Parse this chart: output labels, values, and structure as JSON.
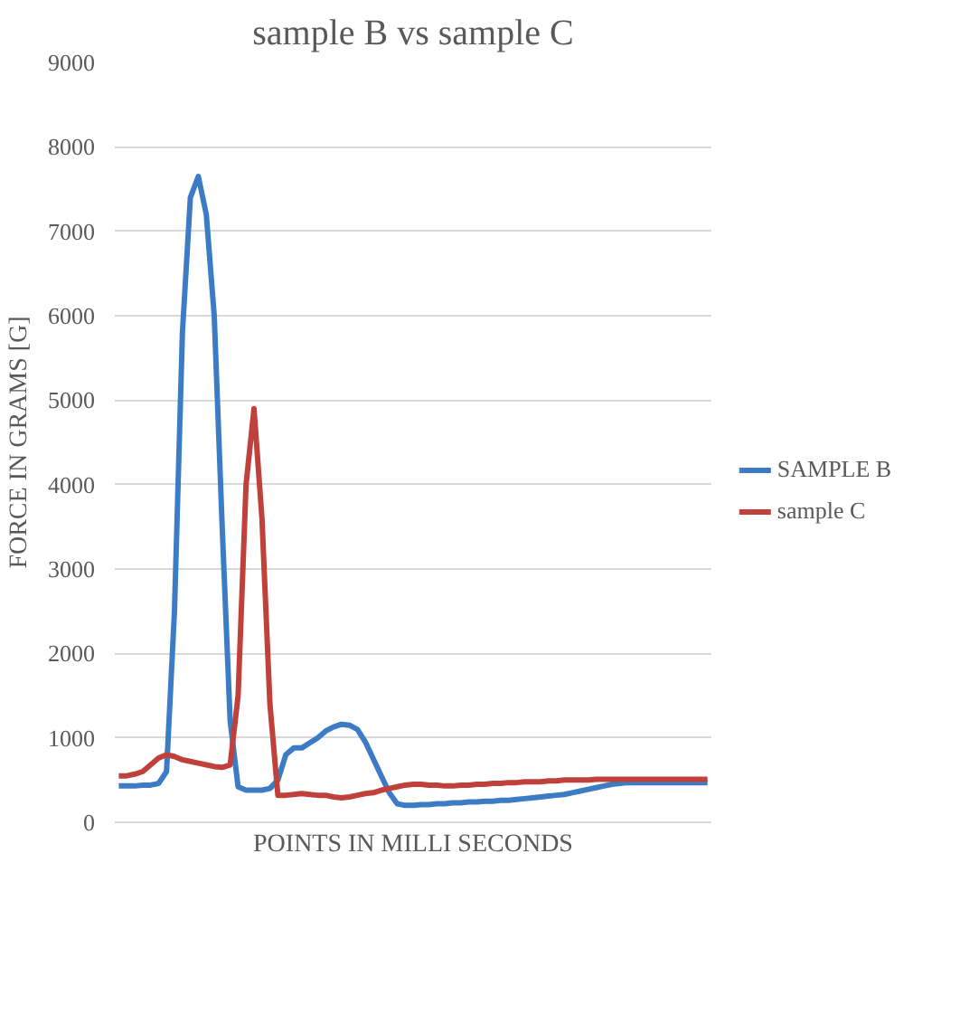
{
  "chart_data": {
    "type": "line",
    "title": "sample B vs sample C",
    "xlabel": "POINTS IN MILLI SECONDS",
    "ylabel": "FORCE IN GRAMS [G]",
    "categories": [
      null,
      null,
      null,
      null,
      null,
      null,
      null,
      null,
      null,
      null,
      null,
      null,
      null,
      null,
      null,
      null,
      null,
      null,
      null,
      null,
      null,
      null,
      null,
      null,
      null,
      null,
      null,
      null,
      null,
      null,
      null,
      null,
      null,
      null,
      null,
      null,
      null,
      null,
      null,
      null,
      null,
      null,
      null,
      null,
      null,
      null,
      null,
      null,
      null,
      null,
      null,
      null,
      null,
      null,
      null,
      null,
      null,
      null,
      null,
      null,
      null,
      null,
      null,
      null,
      null,
      null,
      null,
      null,
      null,
      null,
      null,
      null,
      null,
      null,
      null
    ],
    "series": [
      {
        "name": "SAMPLE B",
        "color": "#3d7cc4",
        "values": [
          430,
          430,
          430,
          440,
          440,
          460,
          600,
          2500,
          5800,
          7400,
          7650,
          7200,
          6000,
          3500,
          1200,
          420,
          380,
          380,
          380,
          400,
          500,
          800,
          880,
          880,
          940,
          1000,
          1080,
          1130,
          1160,
          1150,
          1100,
          950,
          750,
          550,
          350,
          220,
          200,
          200,
          210,
          210,
          220,
          220,
          230,
          230,
          240,
          240,
          250,
          250,
          260,
          260,
          270,
          280,
          290,
          300,
          310,
          320,
          330,
          350,
          370,
          390,
          410,
          430,
          450,
          460,
          470,
          470,
          470,
          470,
          470,
          470,
          470,
          470,
          470,
          470,
          470
        ]
      },
      {
        "name": "sample C",
        "color": "#c0403c",
        "values": [
          550,
          550,
          570,
          600,
          680,
          760,
          800,
          780,
          740,
          720,
          700,
          680,
          660,
          650,
          680,
          1500,
          4000,
          4900,
          3600,
          1400,
          320,
          320,
          330,
          340,
          330,
          320,
          320,
          300,
          290,
          300,
          320,
          340,
          350,
          380,
          400,
          420,
          440,
          450,
          450,
          440,
          440,
          430,
          430,
          440,
          440,
          450,
          450,
          460,
          460,
          470,
          470,
          480,
          480,
          480,
          490,
          490,
          500,
          500,
          500,
          500,
          510,
          510,
          510,
          510,
          510,
          510,
          510,
          510,
          510,
          510,
          510,
          510,
          510,
          510,
          510
        ]
      }
    ],
    "ylim": [
      0,
      9000
    ],
    "yticks": [
      0,
      1000,
      2000,
      3000,
      4000,
      5000,
      6000,
      7000,
      8000,
      9000
    ],
    "grid": "y",
    "legend": "right"
  }
}
